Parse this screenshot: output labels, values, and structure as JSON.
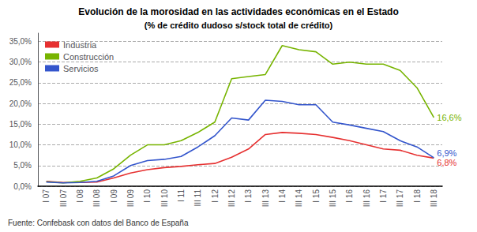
{
  "chart_data": {
    "type": "line",
    "title": "Evolución de la morosidad en las actividades económicas en el Estado",
    "subtitle": "(% de crédito dudoso s/stock total de crédito)",
    "footnote": "Fuente: Confebask con datos del Banco de España",
    "categories": [
      "I 07",
      "III 07",
      "I 08",
      "III 08",
      "I 09",
      "III 09",
      "I 10",
      "III 10",
      "I 11",
      "III 11",
      "I 12",
      "III 12",
      "I 13",
      "III 13",
      "I 14",
      "III 14",
      "I 15",
      "III 15",
      "I 16",
      "III 16",
      "I 17",
      "III 17",
      "I 18",
      "III 18"
    ],
    "series": [
      {
        "name": "Industria",
        "color": "#e63030",
        "values": [
          0.012,
          0.009,
          0.009,
          0.01,
          0.02,
          0.032,
          0.04,
          0.045,
          0.048,
          0.052,
          0.055,
          0.07,
          0.09,
          0.125,
          0.13,
          0.128,
          0.125,
          0.118,
          0.11,
          0.1,
          0.09,
          0.087,
          0.075,
          0.068
        ]
      },
      {
        "name": "Construcción",
        "color": "#77b400",
        "values": [
          0.011,
          0.008,
          0.012,
          0.02,
          0.042,
          0.075,
          0.1,
          0.1,
          0.11,
          0.13,
          0.155,
          0.26,
          0.265,
          0.27,
          0.34,
          0.33,
          0.325,
          0.295,
          0.3,
          0.295,
          0.295,
          0.28,
          0.238,
          0.166
        ]
      },
      {
        "name": "Servicios",
        "color": "#3355cc",
        "values": [
          0.01,
          0.008,
          0.009,
          0.012,
          0.025,
          0.05,
          0.062,
          0.065,
          0.072,
          0.095,
          0.122,
          0.165,
          0.16,
          0.208,
          0.205,
          0.197,
          0.197,
          0.155,
          0.148,
          0.14,
          0.132,
          0.11,
          0.095,
          0.069
        ]
      }
    ],
    "annotations": [
      {
        "series": "Construcción",
        "text": "16,6%"
      },
      {
        "series": "Servicios",
        "text": "6,9%"
      },
      {
        "series": "Industria",
        "text": "6,8%"
      }
    ],
    "ylim": [
      0.0,
      0.37
    ],
    "yticks": [
      {
        "value": 0.0,
        "label": "0,0%"
      },
      {
        "value": 0.05,
        "label": "5,0%"
      },
      {
        "value": 0.1,
        "label": "10,0%"
      },
      {
        "value": 0.15,
        "label": "15,0%"
      },
      {
        "value": 0.2,
        "label": "20,0%"
      },
      {
        "value": 0.25,
        "label": "25,0%"
      },
      {
        "value": 0.3,
        "label": "30,0%"
      },
      {
        "value": 0.35,
        "label": "35,0%"
      }
    ],
    "grid": true,
    "legend": "upper left"
  }
}
